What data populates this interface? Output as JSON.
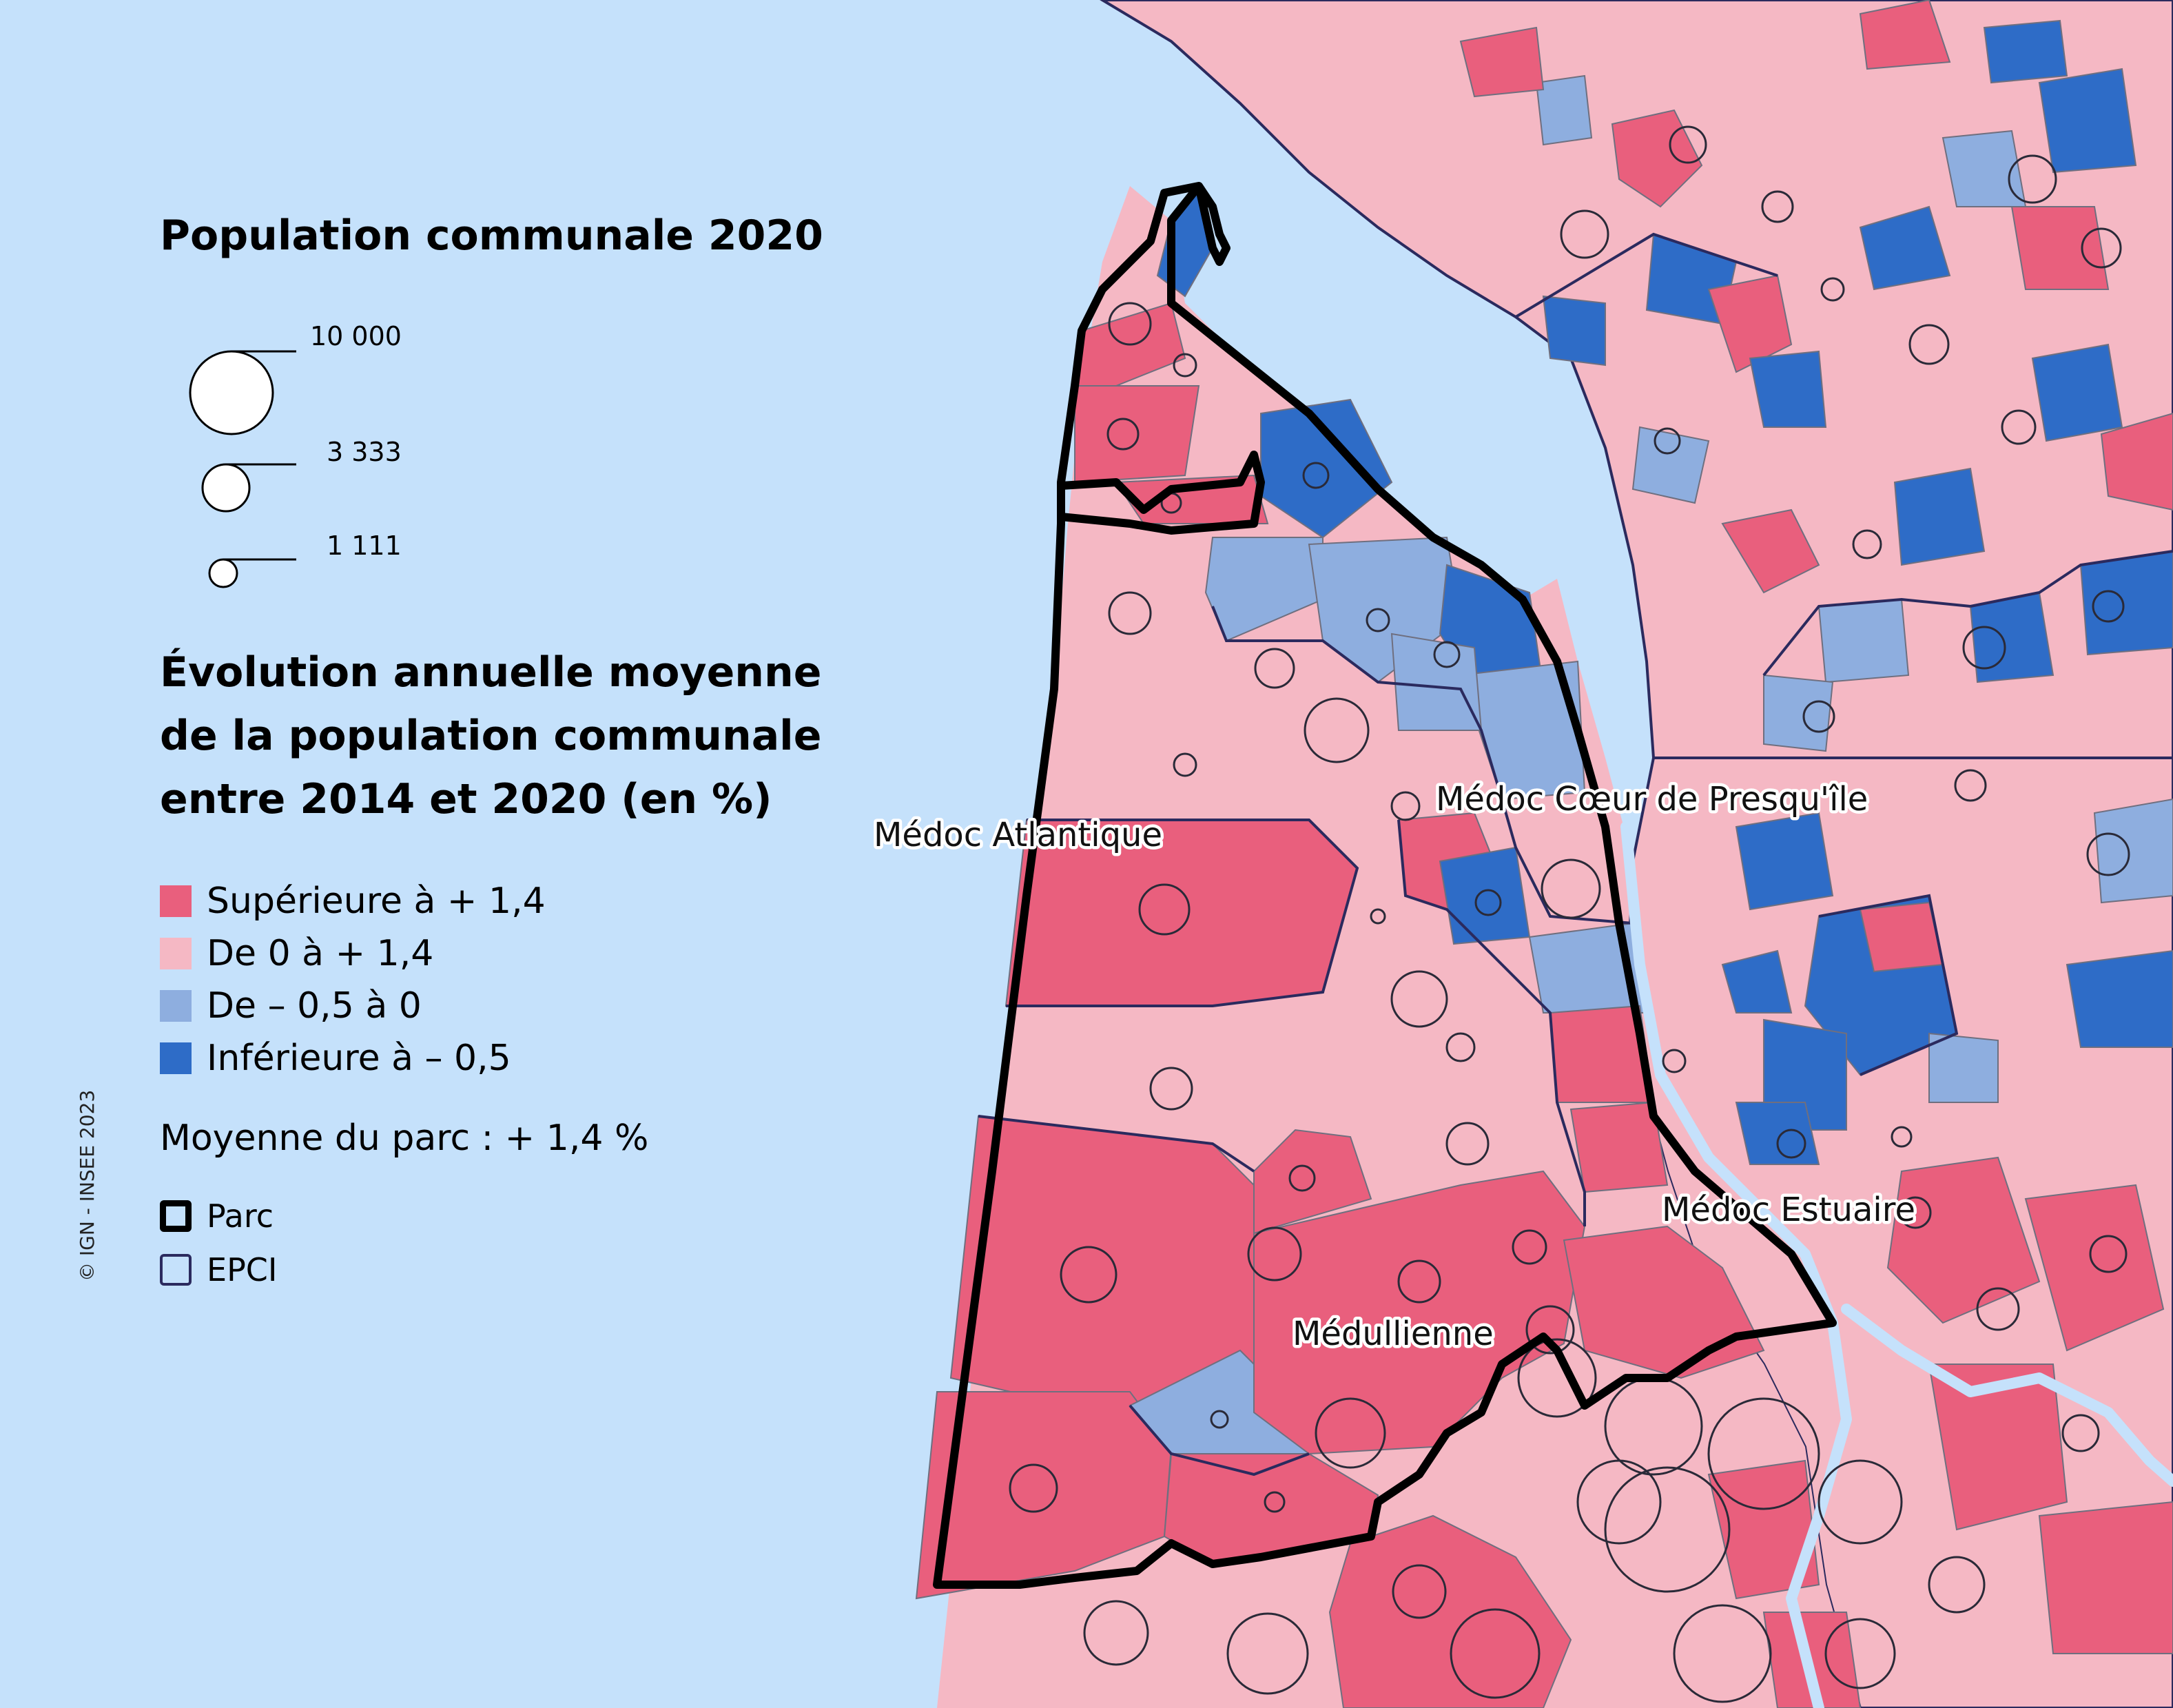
{
  "legend": {
    "pop_title": "Population communale 2020",
    "pop_sizes": [
      {
        "value": 10000,
        "label": "10 000"
      },
      {
        "value": 3333,
        "label": "3 333"
      },
      {
        "value": 1111,
        "label": "1 111"
      }
    ],
    "evo_title": "Évolution annuelle moyenne\nde la population communale\nentre 2014 et 2020 (en %)",
    "classes": [
      {
        "label": "Supérieure à + 1,4",
        "color": "#e95f7d"
      },
      {
        "label": "De 0 à + 1,4",
        "color": "#f5b8c4"
      },
      {
        "label": "De – 0,5 à 0",
        "color": "#8eaedf"
      },
      {
        "label": "Inférieure à – 0,5",
        "color": "#2e6cc7"
      }
    ],
    "average": "Moyenne du parc : + 1,4 %",
    "parc_label": "Parc",
    "epci_label": "EPCI"
  },
  "map": {
    "water_color": "#c5e1fb",
    "labels": {
      "medoc_atlantique": "Médoc Atlantique",
      "medoc_coeur": "Médoc Cœur de Presqu'île",
      "medoc_estuaire": "Médoc Estuaire",
      "medullienne": "Médullienne"
    }
  },
  "copyright": "© IGN - INSEE 2023"
}
